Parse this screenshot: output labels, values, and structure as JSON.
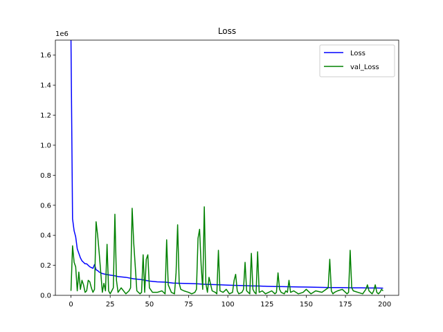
{
  "chart_data": {
    "type": "line",
    "title": "Loss",
    "xlabel": "",
    "ylabel": "",
    "y_offset_label": "1e6",
    "xlim": [
      -9.95,
      208.95
    ],
    "ylim": [
      0,
      1.7
    ],
    "xticks": [
      0,
      25,
      50,
      75,
      100,
      125,
      150,
      175,
      200
    ],
    "yticks": [
      0.0,
      0.2,
      0.4,
      0.6,
      0.8,
      1.0,
      1.2,
      1.4,
      1.6
    ],
    "grid": false,
    "legend_position": "top-right",
    "series": [
      {
        "name": "Loss",
        "color": "#0000ff",
        "x": [
          0,
          1,
          2,
          3,
          4,
          5,
          6,
          7,
          8,
          9,
          10,
          11,
          12,
          13,
          14,
          15,
          16,
          17,
          18,
          19,
          20,
          22,
          25,
          28,
          30,
          35,
          40,
          45,
          50,
          55,
          60,
          65,
          70,
          75,
          80,
          85,
          90,
          95,
          100,
          105,
          110,
          115,
          120,
          125,
          130,
          135,
          140,
          145,
          150,
          155,
          160,
          165,
          170,
          175,
          180,
          185,
          190,
          195,
          199
        ],
        "y": [
          1.7,
          0.51,
          0.43,
          0.39,
          0.31,
          0.28,
          0.25,
          0.23,
          0.22,
          0.21,
          0.21,
          0.2,
          0.19,
          0.185,
          0.18,
          0.205,
          0.17,
          0.165,
          0.155,
          0.15,
          0.145,
          0.14,
          0.135,
          0.13,
          0.125,
          0.12,
          0.11,
          0.105,
          0.095,
          0.09,
          0.088,
          0.082,
          0.08,
          0.079,
          0.077,
          0.074,
          0.072,
          0.07,
          0.068,
          0.066,
          0.065,
          0.063,
          0.062,
          0.06,
          0.059,
          0.058,
          0.057,
          0.056,
          0.055,
          0.054,
          0.053,
          0.052,
          0.052,
          0.051,
          0.05,
          0.05,
          0.049,
          0.049,
          0.048
        ]
      },
      {
        "name": "val_Loss",
        "color": "#008000",
        "x": [
          0,
          1,
          2,
          3,
          4,
          5,
          6,
          7,
          8,
          9,
          10,
          11,
          12,
          13,
          14,
          15,
          16,
          17,
          18,
          19,
          20,
          21,
          22,
          23,
          24,
          25,
          26,
          27,
          28,
          29,
          30,
          32,
          35,
          37,
          38,
          39,
          40,
          42,
          44,
          45,
          46,
          47,
          48,
          49,
          50,
          52,
          55,
          58,
          60,
          61,
          62,
          64,
          66,
          67,
          68,
          69,
          70,
          72,
          75,
          77,
          79,
          80,
          81,
          82,
          83,
          84,
          85,
          86,
          87,
          88,
          90,
          92,
          93,
          94,
          95,
          97,
          99,
          101,
          103,
          104,
          105,
          106,
          107,
          109,
          110,
          111,
          112,
          114,
          115,
          116,
          117,
          118,
          119,
          120,
          122,
          124,
          126,
          128,
          130,
          131,
          132,
          133,
          134,
          136,
          137,
          138,
          139,
          140,
          142,
          145,
          148,
          150,
          153,
          156,
          160,
          164,
          165,
          166,
          167,
          168,
          170,
          173,
          176,
          177,
          178,
          179,
          180,
          183,
          186,
          188,
          189,
          190,
          191,
          192,
          193,
          194,
          195,
          196,
          197,
          198,
          199
        ],
        "y": [
          0.03,
          0.33,
          0.22,
          0.19,
          0.03,
          0.155,
          0.04,
          0.1,
          0.07,
          0.02,
          0.03,
          0.1,
          0.09,
          0.05,
          0.02,
          0.04,
          0.49,
          0.4,
          0.28,
          0.15,
          0.02,
          0.08,
          0.03,
          0.34,
          0.03,
          0.01,
          0.03,
          0.05,
          0.54,
          0.1,
          0.02,
          0.05,
          0.01,
          0.03,
          0.05,
          0.58,
          0.35,
          0.03,
          0.01,
          0.02,
          0.27,
          0.02,
          0.24,
          0.27,
          0.05,
          0.02,
          0.02,
          0.03,
          0.01,
          0.37,
          0.07,
          0.02,
          0.01,
          0.15,
          0.47,
          0.08,
          0.04,
          0.03,
          0.02,
          0.01,
          0.02,
          0.04,
          0.38,
          0.44,
          0.2,
          0.04,
          0.59,
          0.08,
          0.02,
          0.12,
          0.03,
          0.02,
          0.01,
          0.3,
          0.03,
          0.02,
          0.04,
          0.01,
          0.02,
          0.1,
          0.14,
          0.03,
          0.01,
          0.02,
          0.04,
          0.22,
          0.03,
          0.01,
          0.28,
          0.04,
          0.02,
          0.01,
          0.29,
          0.02,
          0.03,
          0.01,
          0.02,
          0.03,
          0.01,
          0.02,
          0.15,
          0.04,
          0.02,
          0.01,
          0.03,
          0.02,
          0.1,
          0.02,
          0.03,
          0.01,
          0.02,
          0.04,
          0.01,
          0.03,
          0.02,
          0.05,
          0.24,
          0.03,
          0.01,
          0.02,
          0.03,
          0.04,
          0.01,
          0.02,
          0.3,
          0.05,
          0.03,
          0.02,
          0.01,
          0.04,
          0.07,
          0.03,
          0.02,
          0.01,
          0.03,
          0.07,
          0.02,
          0.01,
          0.02,
          0.04,
          0.03
        ]
      }
    ]
  }
}
